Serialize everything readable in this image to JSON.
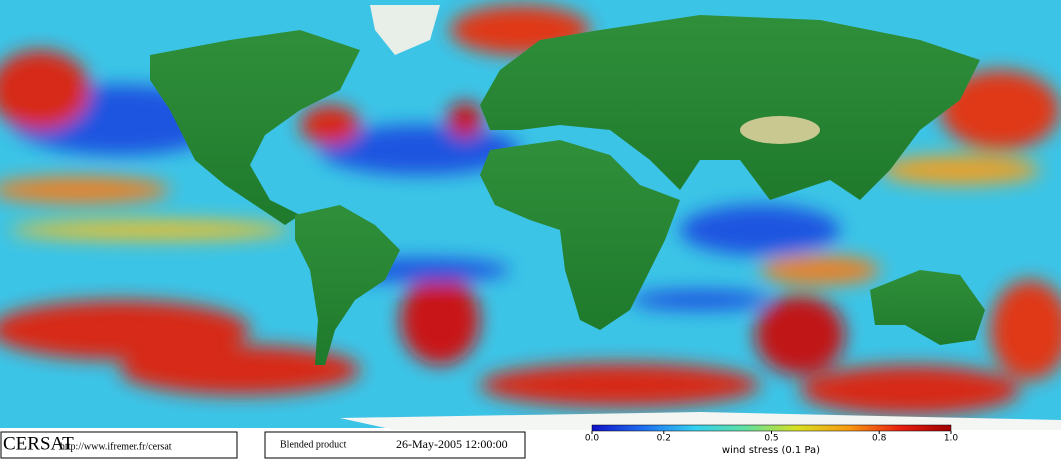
{
  "map": {
    "footer": {
      "logo": "CERSAT",
      "url": "http://www.ifremer.fr/cersat",
      "product": "Blended product",
      "timestamp": "26-May-2005 12:00:00"
    },
    "colorbar": {
      "label": "wind stress (0.1 Pa)",
      "range": [
        0,
        1
      ],
      "ticks": [
        {
          "value": 0,
          "label": "0.0"
        },
        {
          "value": 0.2,
          "label": "0.2"
        },
        {
          "value": 0.5,
          "label": "0.5"
        },
        {
          "value": 0.8,
          "label": "0.8"
        },
        {
          "value": 1,
          "label": "1.0"
        }
      ],
      "colors": [
        "#1010c8",
        "#1f6ff0",
        "#33d0f0",
        "#60e0a0",
        "#d8e020",
        "#f89a10",
        "#e82010",
        "#a00000"
      ]
    }
  }
}
